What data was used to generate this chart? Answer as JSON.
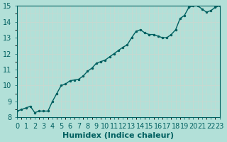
{
  "title": "",
  "xlabel": "Humidex (Indice chaleur)",
  "ylabel": "",
  "background_color": "#b2e0d8",
  "grid_color": "#c8d8d0",
  "line_color": "#006060",
  "xlim": [
    0,
    23
  ],
  "ylim": [
    8,
    15
  ],
  "x": [
    0,
    0.5,
    1,
    1.5,
    2,
    2.5,
    3,
    3.5,
    4,
    4.5,
    5,
    5.5,
    6,
    6.5,
    7,
    7.5,
    8,
    8.5,
    9,
    9.5,
    10,
    10.5,
    11,
    11.5,
    12,
    12.5,
    13,
    13.5,
    14,
    14.5,
    15,
    15.5,
    16,
    16.5,
    17,
    17.5,
    18,
    18.5,
    19,
    19.5,
    20,
    20.5,
    21,
    21.5,
    22,
    22.5,
    23
  ],
  "y": [
    8.4,
    8.5,
    8.6,
    8.7,
    8.3,
    8.4,
    8.4,
    8.4,
    9.0,
    9.5,
    10.0,
    10.1,
    10.3,
    10.35,
    10.4,
    10.6,
    10.9,
    11.1,
    11.4,
    11.5,
    11.6,
    11.8,
    12.0,
    12.2,
    12.4,
    12.55,
    13.0,
    13.4,
    13.5,
    13.3,
    13.2,
    13.2,
    13.1,
    13.0,
    13.0,
    13.2,
    13.5,
    14.2,
    14.4,
    14.9,
    15.0,
    15.0,
    14.8,
    14.6,
    14.7,
    14.9,
    15.0
  ],
  "xticks": [
    0,
    1,
    2,
    3,
    4,
    5,
    6,
    7,
    8,
    9,
    10,
    11,
    12,
    13,
    14,
    15,
    16,
    17,
    18,
    19,
    20,
    21,
    22,
    23
  ],
  "yticks": [
    8,
    9,
    10,
    11,
    12,
    13,
    14,
    15
  ],
  "linewidth": 1.0,
  "marker": ".",
  "marker_size": 3,
  "tick_labelsize": 7,
  "xlabel_fontsize": 8,
  "xlabel_fontweight": "bold"
}
